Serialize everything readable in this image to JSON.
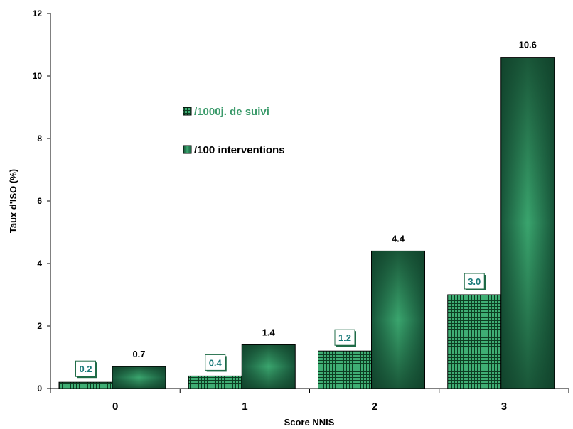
{
  "chart_data": {
    "type": "bar",
    "categories": [
      "0",
      "1",
      "2",
      "3"
    ],
    "series": [
      {
        "name": "/1000j. de suivi",
        "values": [
          0.2,
          0.4,
          1.2,
          3.0
        ],
        "labels": [
          "0.2",
          "0.4",
          "1.2",
          "3.0"
        ],
        "pattern": "grid",
        "color": "#2e8b57"
      },
      {
        "name": "/100 interventions",
        "values": [
          0.7,
          1.4,
          4.4,
          10.6
        ],
        "labels": [
          "0.7",
          "1.4",
          "4.4",
          "10.6"
        ],
        "pattern": "gradient",
        "color": "#1f6b47"
      }
    ],
    "xlabel": "Score NNIS",
    "ylabel": "Taux d'ISO (%)",
    "ylim": [
      0,
      12
    ],
    "yticks": [
      "0",
      "2",
      "4",
      "6",
      "8",
      "10",
      "12"
    ],
    "grid": false,
    "legend_position": "upper-left-inside"
  }
}
